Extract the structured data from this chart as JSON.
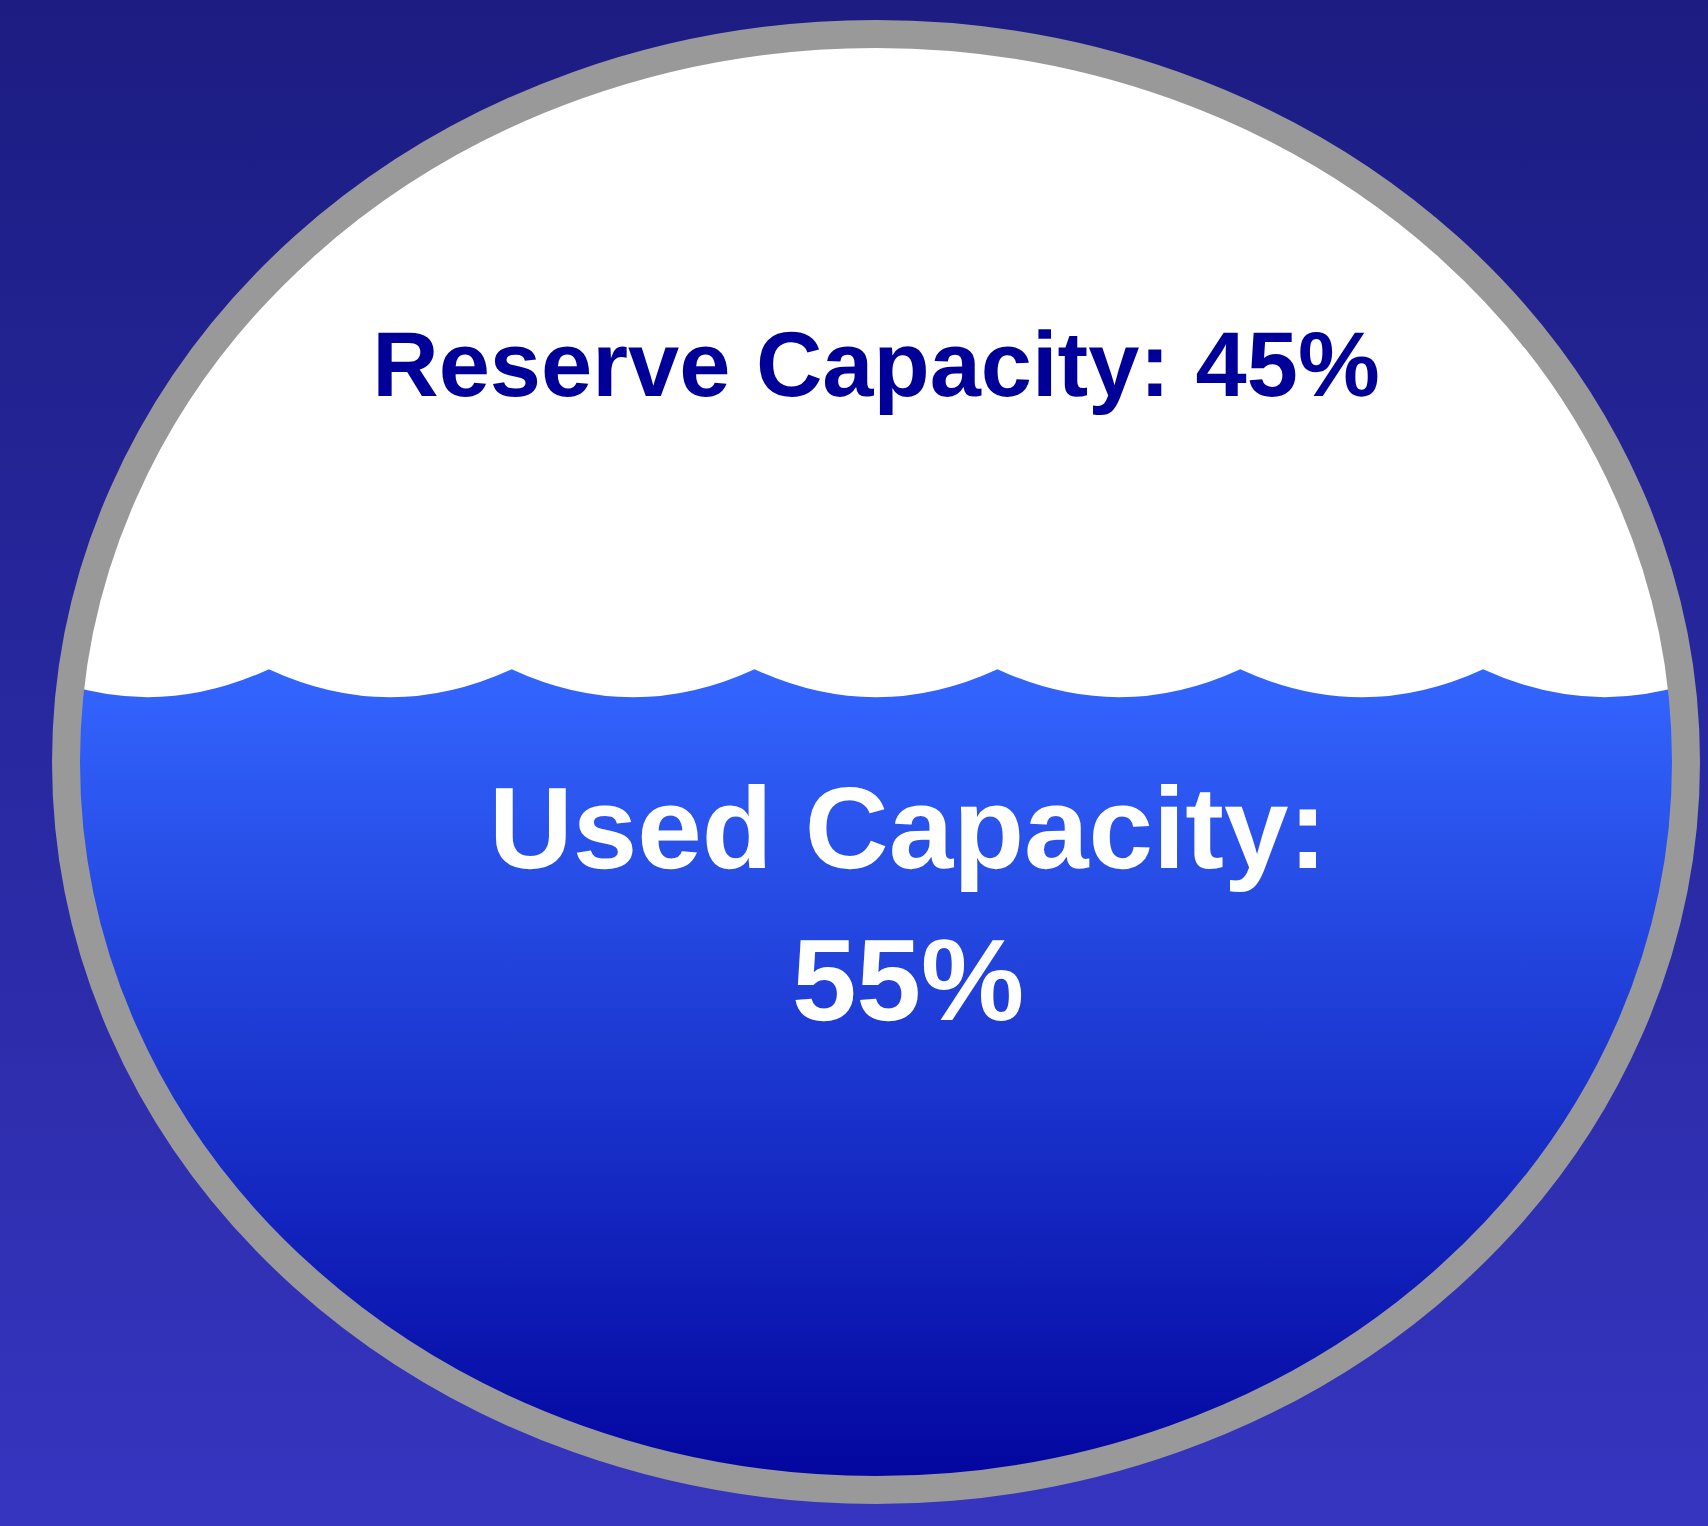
{
  "chart_data": {
    "type": "other",
    "values": [
      45,
      55
    ],
    "value_labels": [
      "Reserve Capacity: 45%",
      "Used Capacity: 55%"
    ],
    "colors": [
      "#ffffff",
      "#3366ff"
    ]
  }
}
